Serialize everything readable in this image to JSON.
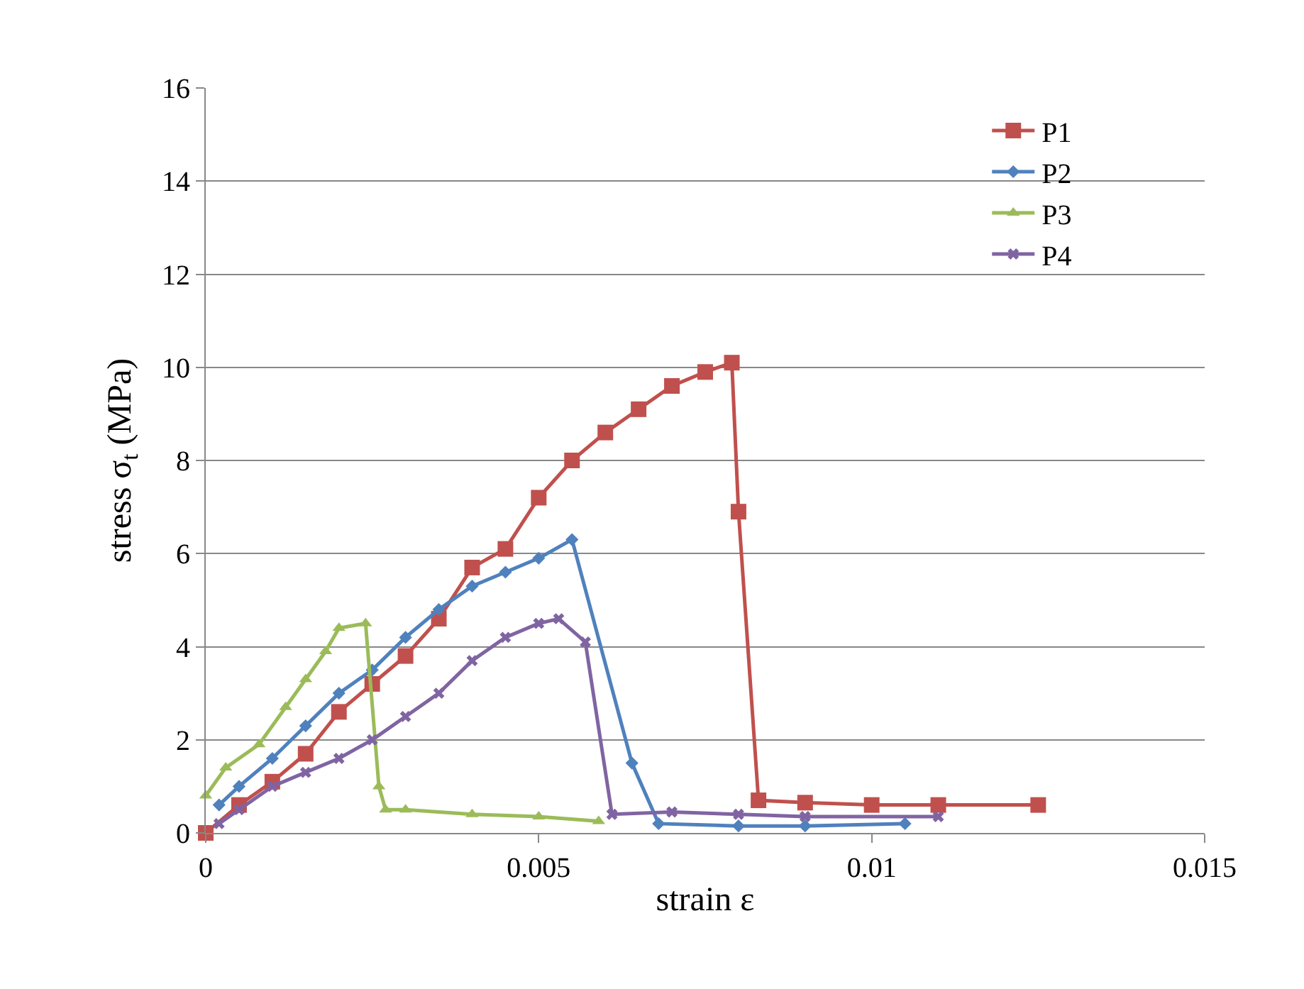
{
  "chart_data": {
    "type": "line",
    "xlabel": "strain ε",
    "ylabel": "stress σ$_{t}$ (MPa)",
    "xlim": [
      0,
      0.015
    ],
    "xticks": [
      0,
      0.005,
      0.01,
      0.015
    ],
    "ylim": [
      0,
      16
    ],
    "yticks": [
      0,
      2,
      4,
      6,
      8,
      10,
      12,
      14,
      16
    ],
    "grid": "y",
    "legend": "top right",
    "line_style": "solid",
    "series": [
      {
        "name": "P1",
        "color": "#c0504d",
        "marker": "square",
        "x": [
          0,
          0.0005,
          0.001,
          0.0015,
          0.002,
          0.0025,
          0.003,
          0.0035,
          0.004,
          0.0045,
          0.005,
          0.0055,
          0.006,
          0.0065,
          0.007,
          0.0075,
          0.0079,
          0.008,
          0.0083,
          0.009,
          0.01,
          0.011,
          0.0125
        ],
        "values": [
          0,
          0.6,
          1.1,
          1.7,
          2.6,
          3.2,
          3.8,
          4.6,
          5.7,
          6.1,
          7.2,
          8.0,
          8.6,
          9.1,
          9.6,
          9.9,
          10.1,
          6.9,
          0.7,
          0.65,
          0.6,
          0.6,
          0.6
        ]
      },
      {
        "name": "P2",
        "color": "#4f81bd",
        "marker": "diamond",
        "x": [
          0.0002,
          0.0005,
          0.001,
          0.0015,
          0.002,
          0.0025,
          0.003,
          0.0035,
          0.004,
          0.0045,
          0.005,
          0.0055,
          0.0064,
          0.0068,
          0.008,
          0.009,
          0.0105
        ],
        "values": [
          0.6,
          1.0,
          1.6,
          2.3,
          3.0,
          3.5,
          4.2,
          4.8,
          5.3,
          5.6,
          5.9,
          6.3,
          1.5,
          0.2,
          0.15,
          0.15,
          0.2
        ]
      },
      {
        "name": "P3",
        "color": "#9bbb59",
        "marker": "triangle",
        "x": [
          0,
          0.0003,
          0.0008,
          0.0012,
          0.0015,
          0.0018,
          0.002,
          0.0024,
          0.0026,
          0.0027,
          0.003,
          0.004,
          0.005,
          0.0059
        ],
        "values": [
          0.8,
          1.4,
          1.9,
          2.7,
          3.3,
          3.9,
          4.4,
          4.5,
          1.0,
          0.5,
          0.5,
          0.4,
          0.35,
          0.25
        ]
      },
      {
        "name": "P4",
        "color": "#8064a2",
        "marker": "cross",
        "x": [
          0.0002,
          0.0005,
          0.001,
          0.0015,
          0.002,
          0.0025,
          0.003,
          0.0035,
          0.004,
          0.0045,
          0.005,
          0.0053,
          0.0057,
          0.0061,
          0.007,
          0.008,
          0.009,
          0.011
        ],
        "values": [
          0.2,
          0.5,
          1.0,
          1.3,
          1.6,
          2.0,
          2.5,
          3.0,
          3.7,
          4.2,
          4.5,
          4.6,
          4.1,
          0.4,
          0.45,
          0.4,
          0.35,
          0.35
        ]
      }
    ]
  }
}
